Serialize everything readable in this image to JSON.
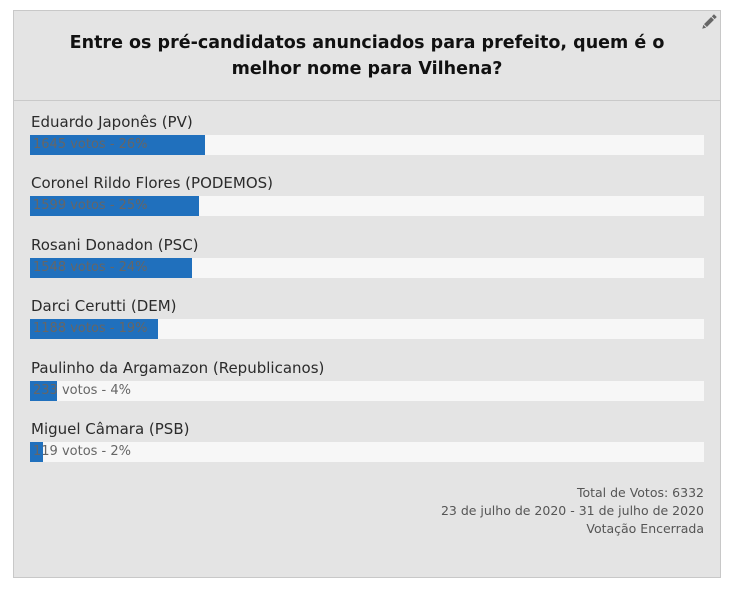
{
  "poll": {
    "question": "Entre os pré-candidatos anunciados para prefeito, quem é o melhor nome para Vilhena?",
    "edit_icon": "pencil-icon",
    "colors": {
      "bar_fill": "#2070bd",
      "bar_track": "#f7f7f7",
      "panel_bg": "#e4e4e4"
    },
    "options": [
      {
        "label": "Eduardo Japonês (PV)",
        "result": "1645 votos - 26%",
        "votes": 1645,
        "percent": 26
      },
      {
        "label": "Coronel Rildo Flores (PODEMOS)",
        "result": "1599 votos - 25%",
        "votes": 1599,
        "percent": 25
      },
      {
        "label": "Rosani Donadon (PSC)",
        "result": "1548 votos - 24%",
        "votes": 1548,
        "percent": 24
      },
      {
        "label": "Darci Cerutti (DEM)",
        "result": "1188 votos - 19%",
        "votes": 1188,
        "percent": 19
      },
      {
        "label": "Paulinho da Argamazon (Republicanos)",
        "result": "233 votos - 4%",
        "votes": 233,
        "percent": 4
      },
      {
        "label": "Miguel Câmara (PSB)",
        "result": "119 votos - 2%",
        "votes": 119,
        "percent": 2
      }
    ],
    "footer": {
      "total": "Total de Votos: 6332",
      "period": "23 de julho de 2020 - 31 de julho de 2020",
      "status": "Votação Encerrada"
    }
  }
}
